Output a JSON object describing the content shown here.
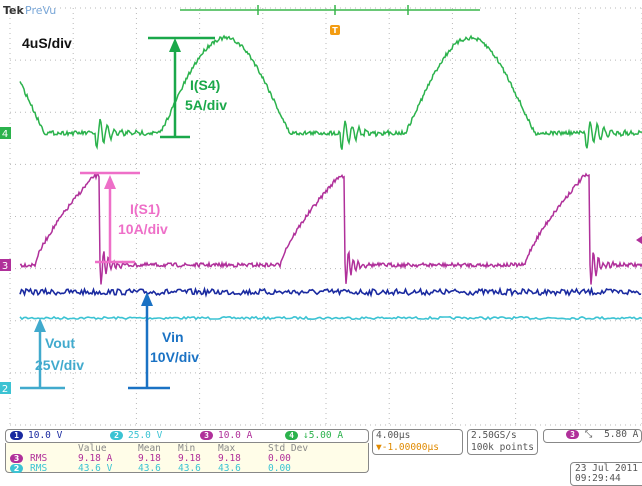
{
  "header": {
    "brand": "Tek",
    "mode": "PreVu",
    "trigger_marker": "T"
  },
  "annotations": {
    "timebase": "4uS/div",
    "i_s4": "I(S4)",
    "i_s4_scale": "5A/div",
    "i_s1": "I(S1)",
    "i_s1_scale": "10A/div",
    "vout": "Vout",
    "vout_scale": "25V/div",
    "vin": "Vin",
    "vin_scale": "10V/div"
  },
  "channel_markers": {
    "ch4": "4",
    "ch3": "3",
    "ch2": "2"
  },
  "channels": [
    {
      "id": "1",
      "scale": "10.0 V"
    },
    {
      "id": "2",
      "scale": "25.0 V"
    },
    {
      "id": "3",
      "scale": "10.0 A"
    },
    {
      "id": "4",
      "scale": "↓5.00 A"
    }
  ],
  "measurements": {
    "headers": [
      "Value",
      "Mean",
      "Min",
      "Max",
      "Std Dev"
    ],
    "rows": [
      {
        "channel": "3",
        "label": "RMS",
        "values": [
          "9.18 A",
          "9.18",
          "9.18",
          "9.18",
          "0.00"
        ]
      },
      {
        "channel": "2",
        "label": "RMS",
        "values": [
          "43.6 V",
          "43.6",
          "43.6",
          "43.6",
          "0.00"
        ]
      }
    ]
  },
  "horizontal": {
    "scale": "4.00µs",
    "position": "▼-1.00000µs"
  },
  "acquisition": {
    "rate": "2.50GS/s",
    "points": "100k points"
  },
  "trigger": {
    "channel": "3",
    "slope": "⤡",
    "level": "5.80 A"
  },
  "datetime": {
    "date": "23 Jul  2011",
    "time": "09:29:44"
  }
}
